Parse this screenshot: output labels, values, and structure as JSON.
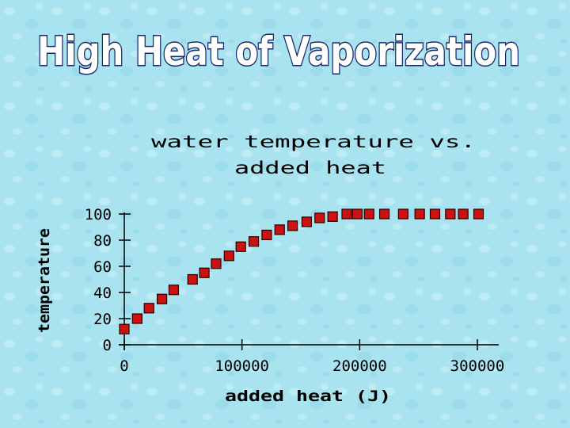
{
  "slide": {
    "title": "High Heat of Vaporization",
    "title_color": "#ffffff",
    "title_outline": "#1a2a6c",
    "background": "#a9e3ef"
  },
  "chart_data": {
    "type": "scatter",
    "title_line1": "water temperature vs.",
    "title_line2": "added heat",
    "xlabel": "added heat (J)",
    "ylabel": "temperature",
    "xlim": [
      0,
      320000
    ],
    "ylim": [
      0,
      100
    ],
    "x_ticks": [
      0,
      100000,
      200000,
      300000
    ],
    "x_tick_labels": [
      "0",
      "100000",
      "200000",
      "300000"
    ],
    "y_ticks": [
      0,
      20,
      40,
      60,
      80,
      100
    ],
    "y_tick_labels": [
      "0",
      "20",
      "40",
      "60",
      "80",
      "100"
    ],
    "grid": false,
    "marker": "square",
    "marker_color": "#cc1111",
    "series": [
      {
        "x": [
          0,
          11000,
          21000,
          32000,
          42000,
          58000,
          68000,
          78000,
          89000,
          99000,
          110000,
          121000,
          132000,
          143000,
          155000,
          166000,
          177000,
          189000,
          198000,
          208000,
          221000,
          237000,
          251000,
          264000,
          277000,
          288000,
          301000
        ],
        "y": [
          12,
          20,
          28,
          35,
          42,
          50,
          55,
          62,
          68,
          75,
          79,
          84,
          88,
          91,
          94,
          97,
          98,
          100,
          100,
          100,
          100,
          100,
          100,
          100,
          100,
          100,
          100
        ]
      }
    ]
  }
}
